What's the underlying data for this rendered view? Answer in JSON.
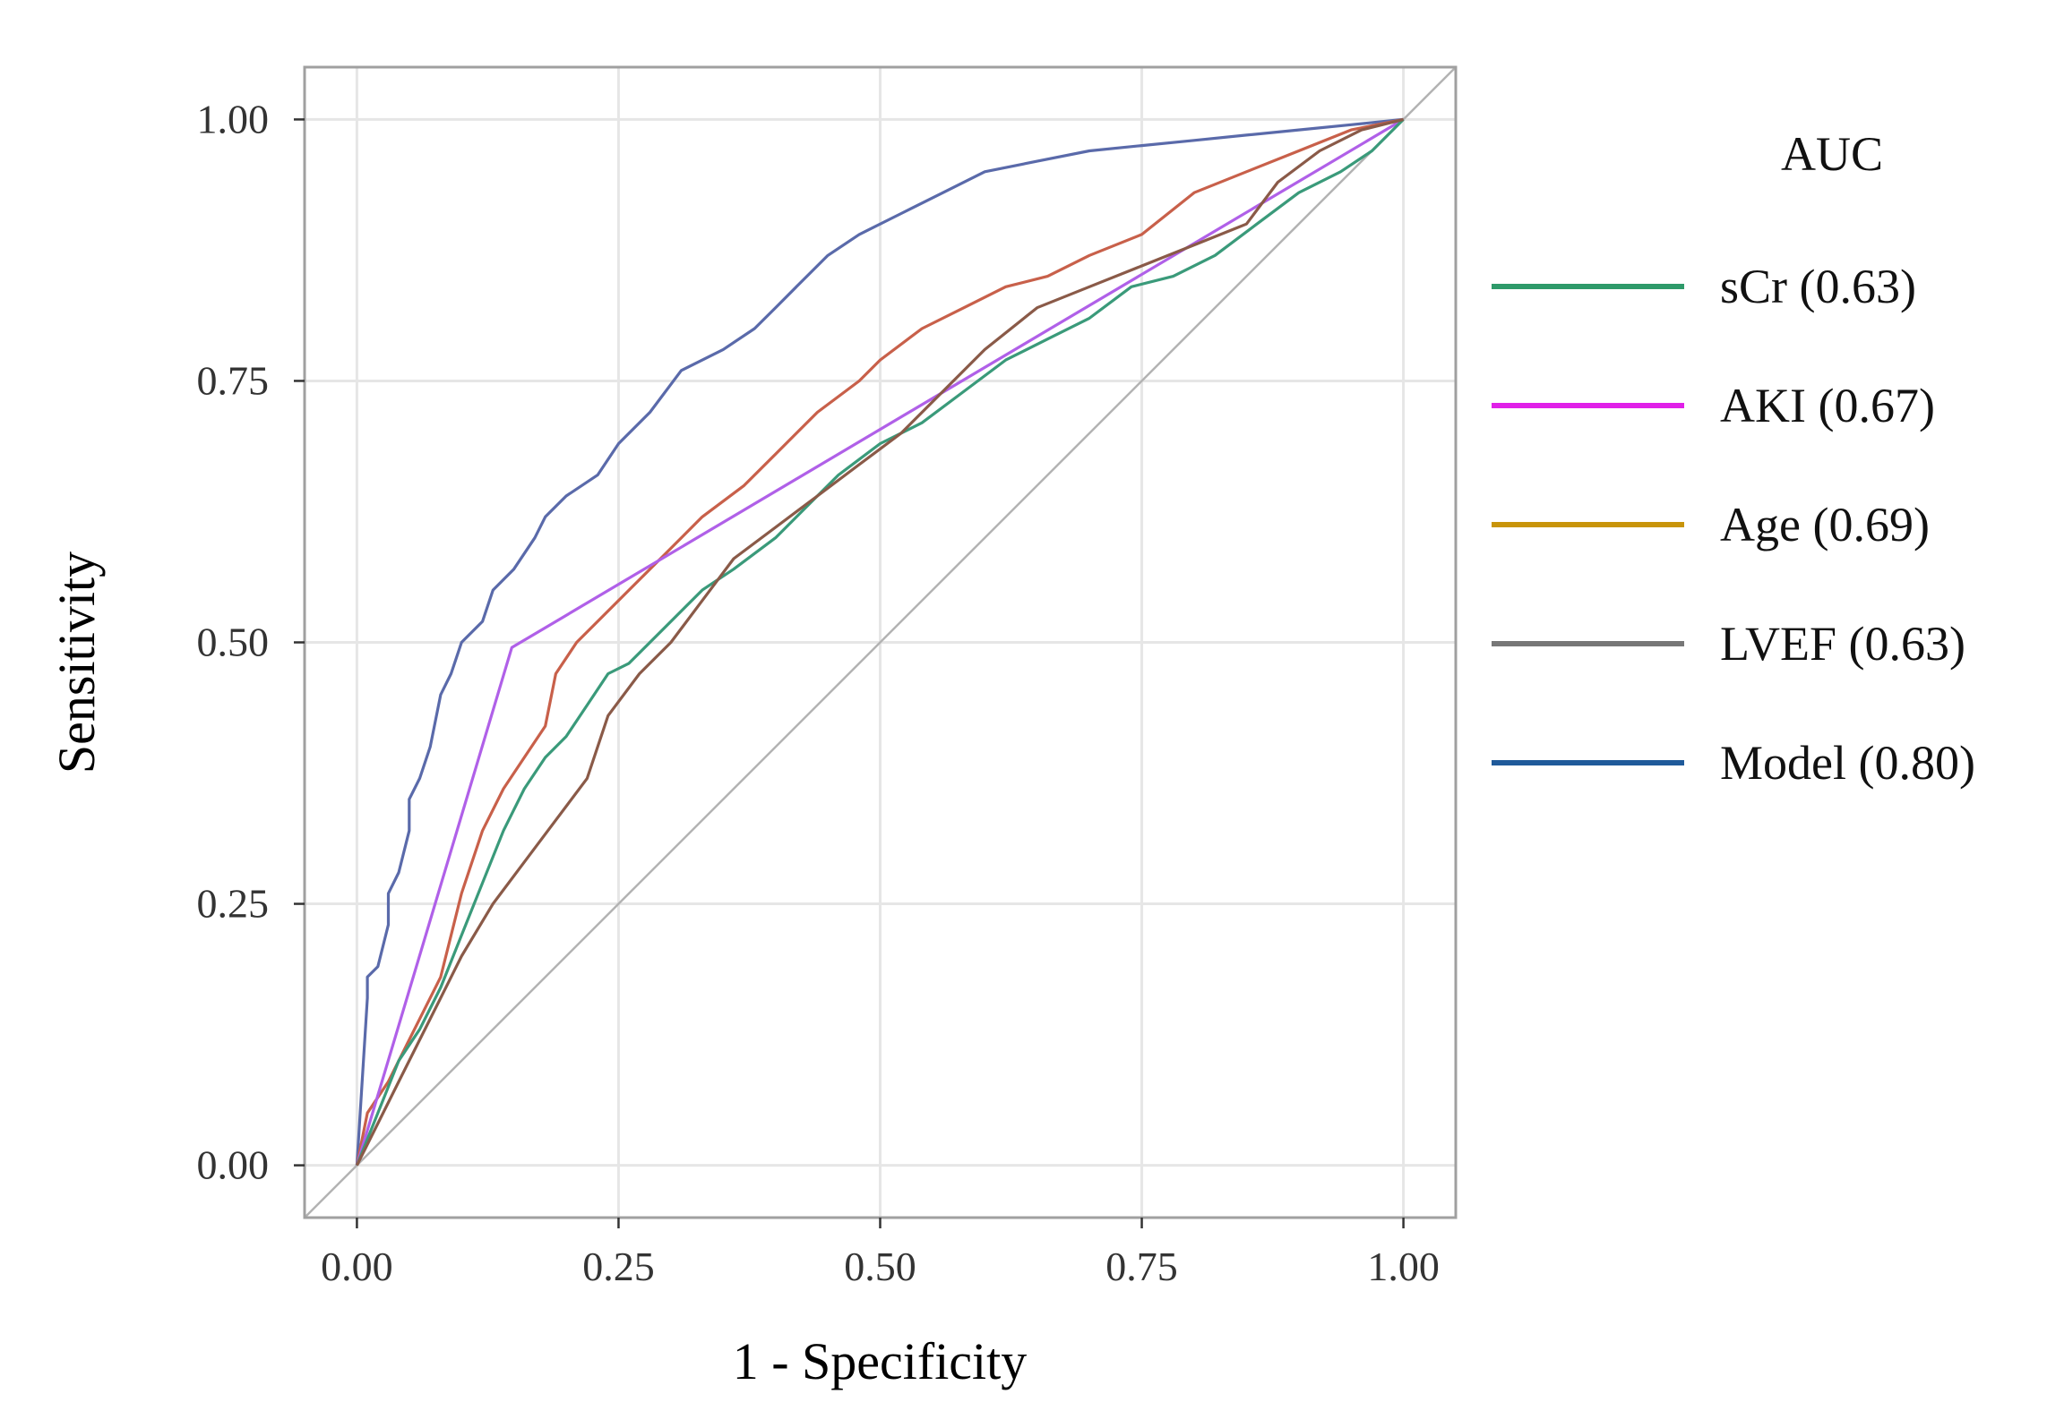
{
  "chart_data": {
    "type": "line",
    "title": "",
    "xlabel": "1 - Specificity",
    "ylabel": "Sensitivity",
    "xlim": [
      -0.05,
      1.05
    ],
    "ylim": [
      -0.05,
      1.05
    ],
    "grid": true,
    "x_ticks": [
      {
        "value": 0,
        "label": "0.00"
      },
      {
        "value": 0.25,
        "label": "0.25"
      },
      {
        "value": 0.5,
        "label": "0.50"
      },
      {
        "value": 0.75,
        "label": "0.75"
      },
      {
        "value": 1,
        "label": "1.00"
      }
    ],
    "y_ticks": [
      {
        "value": 0,
        "label": "0.00"
      },
      {
        "value": 0.25,
        "label": "0.25"
      },
      {
        "value": 0.5,
        "label": "0.50"
      },
      {
        "value": 0.75,
        "label": "0.75"
      },
      {
        "value": 1,
        "label": "1.00"
      }
    ],
    "legend": {
      "title": "AUC",
      "placement": "right",
      "entries": [
        {
          "label": "sCr (0.63)",
          "color": "#2e9a6a"
        },
        {
          "label": "AKI (0.67)",
          "color": "#e020e8"
        },
        {
          "label": "Age (0.69)",
          "color": "#c8940a"
        },
        {
          "label": "LVEF (0.63)",
          "color": "#777777"
        },
        {
          "label": "Model (0.80)",
          "color": "#1f5a9a"
        }
      ]
    },
    "reference_line": {
      "name": "chance",
      "color": "#b3b3b3",
      "x": [
        0,
        1
      ],
      "y": [
        0,
        1
      ]
    },
    "series": [
      {
        "name": "Model",
        "color": "#5a6aaa",
        "x": [
          0,
          0.01,
          0.01,
          0.02,
          0.03,
          0.03,
          0.04,
          0.05,
          0.05,
          0.06,
          0.07,
          0.08,
          0.09,
          0.1,
          0.12,
          0.13,
          0.14,
          0.15,
          0.17,
          0.18,
          0.2,
          0.23,
          0.25,
          0.28,
          0.31,
          0.35,
          0.38,
          0.4,
          0.42,
          0.45,
          0.48,
          0.52,
          0.56,
          0.6,
          0.65,
          0.7,
          0.75,
          0.8,
          0.85,
          0.9,
          0.95,
          1
        ],
        "y": [
          0,
          0.16,
          0.18,
          0.19,
          0.23,
          0.26,
          0.28,
          0.32,
          0.35,
          0.37,
          0.4,
          0.45,
          0.47,
          0.5,
          0.52,
          0.55,
          0.56,
          0.57,
          0.6,
          0.62,
          0.64,
          0.66,
          0.69,
          0.72,
          0.76,
          0.78,
          0.8,
          0.82,
          0.84,
          0.87,
          0.89,
          0.91,
          0.93,
          0.95,
          0.96,
          0.97,
          0.975,
          0.98,
          0.985,
          0.99,
          0.995,
          1
        ]
      },
      {
        "name": "Age",
        "color": "#c8604a",
        "x": [
          0,
          0.01,
          0.03,
          0.05,
          0.08,
          0.1,
          0.12,
          0.14,
          0.16,
          0.18,
          0.19,
          0.21,
          0.23,
          0.26,
          0.3,
          0.33,
          0.37,
          0.4,
          0.44,
          0.48,
          0.5,
          0.54,
          0.58,
          0.62,
          0.66,
          0.7,
          0.75,
          0.8,
          0.85,
          0.9,
          0.95,
          1
        ],
        "y": [
          0,
          0.05,
          0.08,
          0.12,
          0.18,
          0.26,
          0.32,
          0.36,
          0.39,
          0.42,
          0.47,
          0.5,
          0.52,
          0.55,
          0.59,
          0.62,
          0.65,
          0.68,
          0.72,
          0.75,
          0.77,
          0.8,
          0.82,
          0.84,
          0.85,
          0.87,
          0.89,
          0.93,
          0.95,
          0.97,
          0.99,
          1
        ]
      },
      {
        "name": "AKI",
        "color": "#b060e8",
        "x": [
          0,
          0.148,
          1
        ],
        "y": [
          0,
          0.495,
          1
        ]
      },
      {
        "name": "sCr",
        "color": "#3a9a7a",
        "x": [
          0,
          0.02,
          0.04,
          0.06,
          0.08,
          0.1,
          0.12,
          0.14,
          0.16,
          0.18,
          0.2,
          0.22,
          0.24,
          0.26,
          0.28,
          0.3,
          0.33,
          0.36,
          0.4,
          0.43,
          0.46,
          0.5,
          0.54,
          0.58,
          0.62,
          0.66,
          0.7,
          0.74,
          0.78,
          0.82,
          0.86,
          0.9,
          0.94,
          0.97,
          1
        ],
        "y": [
          0,
          0.05,
          0.1,
          0.13,
          0.17,
          0.22,
          0.27,
          0.32,
          0.36,
          0.39,
          0.41,
          0.44,
          0.47,
          0.48,
          0.5,
          0.52,
          0.55,
          0.57,
          0.6,
          0.63,
          0.66,
          0.69,
          0.71,
          0.74,
          0.77,
          0.79,
          0.81,
          0.84,
          0.85,
          0.87,
          0.9,
          0.93,
          0.95,
          0.97,
          1
        ]
      },
      {
        "name": "LVEF",
        "color": "#8a5a48",
        "x": [
          0,
          0.02,
          0.04,
          0.06,
          0.08,
          0.1,
          0.13,
          0.16,
          0.19,
          0.22,
          0.24,
          0.27,
          0.3,
          0.33,
          0.36,
          0.4,
          0.44,
          0.48,
          0.52,
          0.56,
          0.6,
          0.65,
          0.7,
          0.75,
          0.8,
          0.85,
          0.88,
          0.92,
          0.96,
          1
        ],
        "y": [
          0,
          0.04,
          0.08,
          0.12,
          0.16,
          0.2,
          0.25,
          0.29,
          0.33,
          0.37,
          0.43,
          0.47,
          0.5,
          0.54,
          0.58,
          0.61,
          0.64,
          0.67,
          0.7,
          0.74,
          0.78,
          0.82,
          0.84,
          0.86,
          0.88,
          0.9,
          0.94,
          0.97,
          0.99,
          1
        ]
      }
    ]
  }
}
